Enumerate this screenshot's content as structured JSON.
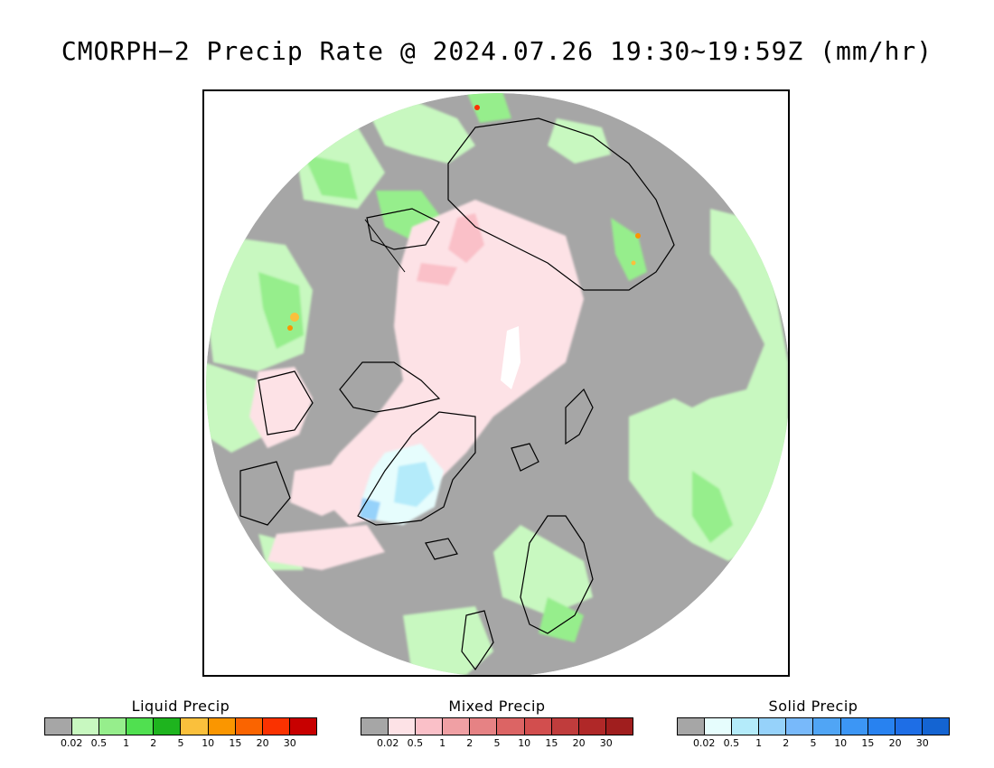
{
  "title": "CMORPH−2 Precip Rate @ 2024.07.26 19:30∼19:59Z (mm/hr)",
  "map": {
    "projection": "north-polar-stereographic",
    "colors": {
      "no_precip": "#a6a6a6",
      "outside": "#ffffff",
      "pole_gap": "#ffffff",
      "coastline": "#000000"
    }
  },
  "legends": [
    {
      "title": "Liquid Precip",
      "colors": [
        "#a6a6a6",
        "#c8f8c0",
        "#96ee8c",
        "#50e050",
        "#1eb41e",
        "#fac03c",
        "#fa9600",
        "#fa6400",
        "#fa3200",
        "#c80000"
      ],
      "ticks": [
        "0.02",
        "0.5",
        "1",
        "2",
        "5",
        "10",
        "15",
        "20",
        "30"
      ]
    },
    {
      "title": "Mixed Precip",
      "colors": [
        "#a6a6a6",
        "#fde2e6",
        "#fac0c8",
        "#f0a0a4",
        "#e68284",
        "#dc6464",
        "#d24e4e",
        "#c03c3c",
        "#b02828",
        "#a01e1e"
      ],
      "ticks": [
        "0.02",
        "0.5",
        "1",
        "2",
        "5",
        "10",
        "15",
        "20",
        "30"
      ]
    },
    {
      "title": "Solid Precip",
      "colors": [
        "#a6a6a6",
        "#e6fdfd",
        "#b4ebfa",
        "#96d2fa",
        "#78b9fa",
        "#50a5f5",
        "#3c96f5",
        "#2882f0",
        "#1e6ee6",
        "#1464d2"
      ],
      "ticks": [
        "0.02",
        "0.5",
        "1",
        "2",
        "5",
        "10",
        "15",
        "20",
        "30"
      ]
    }
  ]
}
